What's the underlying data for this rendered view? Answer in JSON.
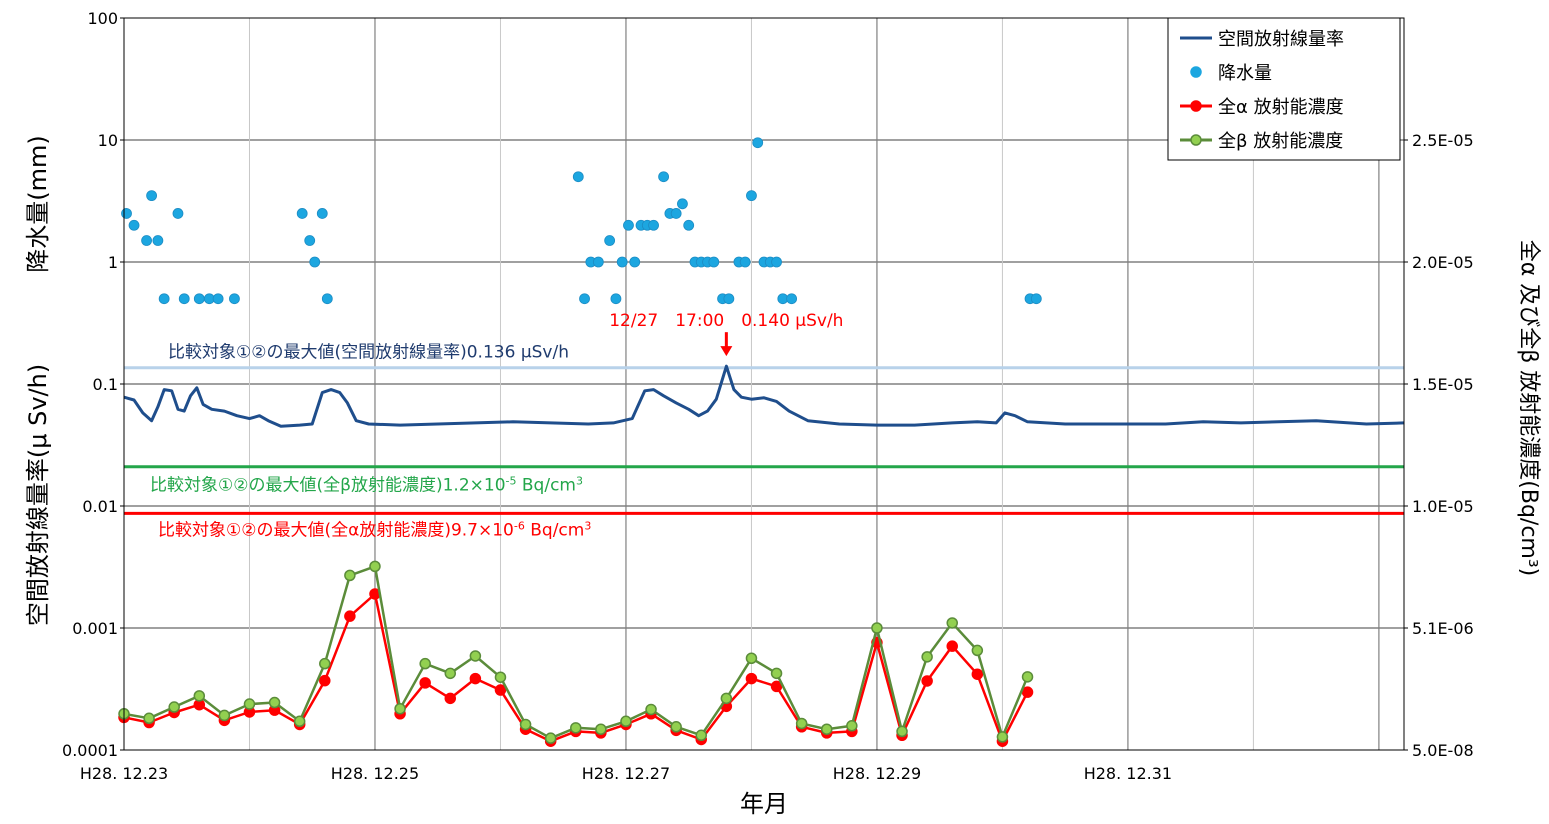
{
  "chart_data": {
    "type": "line",
    "xlabel": "年月",
    "ylabel_left_top": "降水量(mm)",
    "ylabel_left_bottom": "空間放射線量率(μ Sv/h)",
    "ylabel_right": "全α 及び全β 放射能濃度(Bq/cm³)",
    "x_ticks": [
      "H28. 12.23",
      "H28. 12.25",
      "H28. 12.27",
      "H28. 12.29",
      "H28. 12.31"
    ],
    "x_range_days": [
      0,
      10.2
    ],
    "left_axis": {
      "scale": "log",
      "ylim": [
        0.0001,
        100
      ],
      "tick_labels": [
        "100",
        "10",
        "1",
        "0.1",
        "0.01",
        "0.001",
        "0.0001"
      ]
    },
    "right_axis": {
      "scale": "custom",
      "tick_labels": [
        "2.5E-05",
        "2.0E-05",
        "1.5E-05",
        "1.0E-05",
        "5.1E-06",
        "5.0E-08"
      ],
      "tick_left_equivalents": [
        10,
        1,
        0.1,
        0.01,
        0.001,
        0.0001
      ]
    },
    "grid": "on",
    "legend_placement": "top-right",
    "legend": [
      {
        "label": "空間放射線量率",
        "marker": "line",
        "color": "#1f4e8c"
      },
      {
        "label": "降水量",
        "marker": "dot",
        "color": "#1ca6e0"
      },
      {
        "label": "全α 放射能濃度",
        "marker": "line-dot",
        "color": "#ff0000"
      },
      {
        "label": "全β 放射能濃度",
        "marker": "line-dot",
        "color": "#5b8c3a"
      }
    ],
    "reference_lines": [
      {
        "value": 0.136,
        "color": "#b8d2ea",
        "label": "比較対象①②の最大値(空間放射線量率)0.136 μSv/h",
        "label_color": "#1f3b6e"
      },
      {
        "value": 0.021,
        "color": "#23a64a",
        "label": "比較対象①②の最大値(全β放射能濃度)1.2×10",
        "sup": "-5",
        "unit": " Bq/cm",
        "unit_sup": "3",
        "label_color": "#23a64a"
      },
      {
        "value": 0.0087,
        "color": "#ff0000",
        "label": "比較対象①②の最大値(全α放射能濃度)9.7×10",
        "sup": "-6",
        "unit": " Bq/cm",
        "unit_sup": "3",
        "label_color": "#ff0000"
      }
    ],
    "peak_annotation": {
      "text": "12/27　17:00　0.140 μSv/h",
      "color": "#ff0000",
      "x": 4.8,
      "value": 0.14
    },
    "series": [
      {
        "name": "空間放射線量率",
        "kind": "line",
        "color": "#1f4e8c",
        "points": [
          [
            0,
            0.078
          ],
          [
            0.08,
            0.074
          ],
          [
            0.15,
            0.058
          ],
          [
            0.22,
            0.05
          ],
          [
            0.27,
            0.065
          ],
          [
            0.32,
            0.09
          ],
          [
            0.38,
            0.088
          ],
          [
            0.43,
            0.062
          ],
          [
            0.48,
            0.06
          ],
          [
            0.53,
            0.08
          ],
          [
            0.58,
            0.093
          ],
          [
            0.63,
            0.068
          ],
          [
            0.7,
            0.062
          ],
          [
            0.8,
            0.06
          ],
          [
            0.9,
            0.055
          ],
          [
            1.0,
            0.052
          ],
          [
            1.08,
            0.055
          ],
          [
            1.15,
            0.05
          ],
          [
            1.25,
            0.045
          ],
          [
            1.4,
            0.046
          ],
          [
            1.5,
            0.047
          ],
          [
            1.58,
            0.085
          ],
          [
            1.65,
            0.09
          ],
          [
            1.72,
            0.085
          ],
          [
            1.78,
            0.07
          ],
          [
            1.85,
            0.05
          ],
          [
            1.95,
            0.047
          ],
          [
            2.2,
            0.046
          ],
          [
            2.5,
            0.047
          ],
          [
            2.8,
            0.048
          ],
          [
            3.1,
            0.049
          ],
          [
            3.4,
            0.048
          ],
          [
            3.7,
            0.047
          ],
          [
            3.9,
            0.048
          ],
          [
            4.05,
            0.052
          ],
          [
            4.15,
            0.088
          ],
          [
            4.22,
            0.09
          ],
          [
            4.3,
            0.08
          ],
          [
            4.4,
            0.07
          ],
          [
            4.5,
            0.062
          ],
          [
            4.58,
            0.055
          ],
          [
            4.65,
            0.06
          ],
          [
            4.72,
            0.075
          ],
          [
            4.8,
            0.14
          ],
          [
            4.86,
            0.09
          ],
          [
            4.92,
            0.078
          ],
          [
            5.0,
            0.075
          ],
          [
            5.1,
            0.077
          ],
          [
            5.2,
            0.072
          ],
          [
            5.3,
            0.06
          ],
          [
            5.45,
            0.05
          ],
          [
            5.7,
            0.047
          ],
          [
            6.0,
            0.046
          ],
          [
            6.3,
            0.046
          ],
          [
            6.6,
            0.048
          ],
          [
            6.8,
            0.049
          ],
          [
            6.95,
            0.048
          ],
          [
            7.02,
            0.058
          ],
          [
            7.1,
            0.055
          ],
          [
            7.2,
            0.049
          ],
          [
            7.5,
            0.047
          ],
          [
            7.9,
            0.047
          ],
          [
            8.3,
            0.047
          ],
          [
            8.6,
            0.049
          ],
          [
            8.9,
            0.048
          ],
          [
            9.2,
            0.049
          ],
          [
            9.5,
            0.05
          ],
          [
            9.9,
            0.047
          ],
          [
            10.2,
            0.048
          ]
        ]
      },
      {
        "name": "降水量",
        "kind": "scatter",
        "color": "#1ca6e0",
        "points": [
          [
            0.02,
            2.5
          ],
          [
            0.08,
            2.0
          ],
          [
            0.18,
            1.5
          ],
          [
            0.22,
            3.5
          ],
          [
            0.27,
            1.5
          ],
          [
            0.32,
            0.5
          ],
          [
            0.43,
            2.5
          ],
          [
            0.48,
            0.5
          ],
          [
            0.6,
            0.5
          ],
          [
            0.68,
            0.5
          ],
          [
            0.75,
            0.5
          ],
          [
            0.88,
            0.5
          ],
          [
            1.42,
            2.5
          ],
          [
            1.48,
            1.5
          ],
          [
            1.52,
            1.0
          ],
          [
            1.58,
            2.5
          ],
          [
            1.62,
            0.5
          ],
          [
            3.62,
            5.0
          ],
          [
            3.67,
            0.5
          ],
          [
            3.72,
            1.0
          ],
          [
            3.78,
            1.0
          ],
          [
            3.87,
            1.5
          ],
          [
            3.92,
            0.5
          ],
          [
            3.97,
            1.0
          ],
          [
            4.02,
            2.0
          ],
          [
            4.07,
            1.0
          ],
          [
            4.12,
            2.0
          ],
          [
            4.17,
            2.0
          ],
          [
            4.22,
            2.0
          ],
          [
            4.3,
            5.0
          ],
          [
            4.35,
            2.5
          ],
          [
            4.4,
            2.5
          ],
          [
            4.45,
            3.0
          ],
          [
            4.5,
            2.0
          ],
          [
            4.55,
            1.0
          ],
          [
            4.6,
            1.0
          ],
          [
            4.65,
            1.0
          ],
          [
            4.7,
            1.0
          ],
          [
            4.77,
            0.5
          ],
          [
            4.82,
            0.5
          ],
          [
            4.9,
            1.0
          ],
          [
            4.95,
            1.0
          ],
          [
            5.0,
            3.5
          ],
          [
            5.05,
            9.5
          ],
          [
            5.1,
            1.0
          ],
          [
            5.15,
            1.0
          ],
          [
            5.2,
            1.0
          ],
          [
            5.25,
            0.5
          ],
          [
            5.32,
            0.5
          ],
          [
            7.22,
            0.5
          ],
          [
            7.27,
            0.5
          ]
        ]
      },
      {
        "name": "全α 放射能濃度",
        "kind": "line-dot",
        "color": "#ff0000",
        "points": [
          [
            0,
            0.000185
          ],
          [
            0.2,
            0.000168
          ],
          [
            0.4,
            0.000203
          ],
          [
            0.6,
            0.000235
          ],
          [
            0.8,
            0.000175
          ],
          [
            1.0,
            0.000205
          ],
          [
            1.2,
            0.000212
          ],
          [
            1.4,
            0.000162
          ],
          [
            1.6,
            0.00037
          ],
          [
            1.8,
            0.00125
          ],
          [
            2.0,
            0.0019
          ],
          [
            2.2,
            0.000198
          ],
          [
            2.4,
            0.000355
          ],
          [
            2.6,
            0.000265
          ],
          [
            2.8,
            0.000385
          ],
          [
            3.0,
            0.00031
          ],
          [
            3.2,
            0.000148
          ],
          [
            3.4,
            0.000118
          ],
          [
            3.6,
            0.000142
          ],
          [
            3.8,
            0.000138
          ],
          [
            4.0,
            0.000162
          ],
          [
            4.2,
            0.000198
          ],
          [
            4.4,
            0.000145
          ],
          [
            4.6,
            0.000122
          ],
          [
            4.8,
            0.000228
          ],
          [
            5.0,
            0.000385
          ],
          [
            5.2,
            0.000332
          ],
          [
            5.4,
            0.000155
          ],
          [
            5.6,
            0.000138
          ],
          [
            5.8,
            0.000142
          ],
          [
            6.0,
            0.00076
          ],
          [
            6.2,
            0.000132
          ],
          [
            6.4,
            0.000368
          ],
          [
            6.6,
            0.00071
          ],
          [
            6.8,
            0.000418
          ],
          [
            7.0,
            0.000118
          ],
          [
            7.2,
            0.000298
          ]
        ]
      },
      {
        "name": "全β 放射能濃度",
        "kind": "line-dot",
        "color": "#5b8c3a",
        "marker_fill": "#92d050",
        "points": [
          [
            0,
            0.000198
          ],
          [
            0.2,
            0.000182
          ],
          [
            0.4,
            0.000225
          ],
          [
            0.6,
            0.000278
          ],
          [
            0.8,
            0.000192
          ],
          [
            1.0,
            0.000238
          ],
          [
            1.2,
            0.000245
          ],
          [
            1.4,
            0.000172
          ],
          [
            1.6,
            0.00051
          ],
          [
            1.8,
            0.0027
          ],
          [
            2.0,
            0.0032
          ],
          [
            2.2,
            0.000218
          ],
          [
            2.4,
            0.00051
          ],
          [
            2.6,
            0.000425
          ],
          [
            2.8,
            0.00059
          ],
          [
            3.0,
            0.000395
          ],
          [
            3.2,
            0.000162
          ],
          [
            3.4,
            0.000125
          ],
          [
            3.6,
            0.000152
          ],
          [
            3.8,
            0.000148
          ],
          [
            4.0,
            0.000172
          ],
          [
            4.2,
            0.000215
          ],
          [
            4.4,
            0.000155
          ],
          [
            4.6,
            0.000132
          ],
          [
            4.8,
            0.000265
          ],
          [
            5.0,
            0.000565
          ],
          [
            5.2,
            0.000425
          ],
          [
            5.4,
            0.000165
          ],
          [
            5.6,
            0.000148
          ],
          [
            5.8,
            0.000158
          ],
          [
            6.0,
            0.001
          ],
          [
            6.2,
            0.000142
          ],
          [
            6.4,
            0.00058
          ],
          [
            6.6,
            0.0011
          ],
          [
            6.8,
            0.000655
          ],
          [
            7.0,
            0.000128
          ],
          [
            7.2,
            0.000398
          ]
        ]
      }
    ]
  }
}
